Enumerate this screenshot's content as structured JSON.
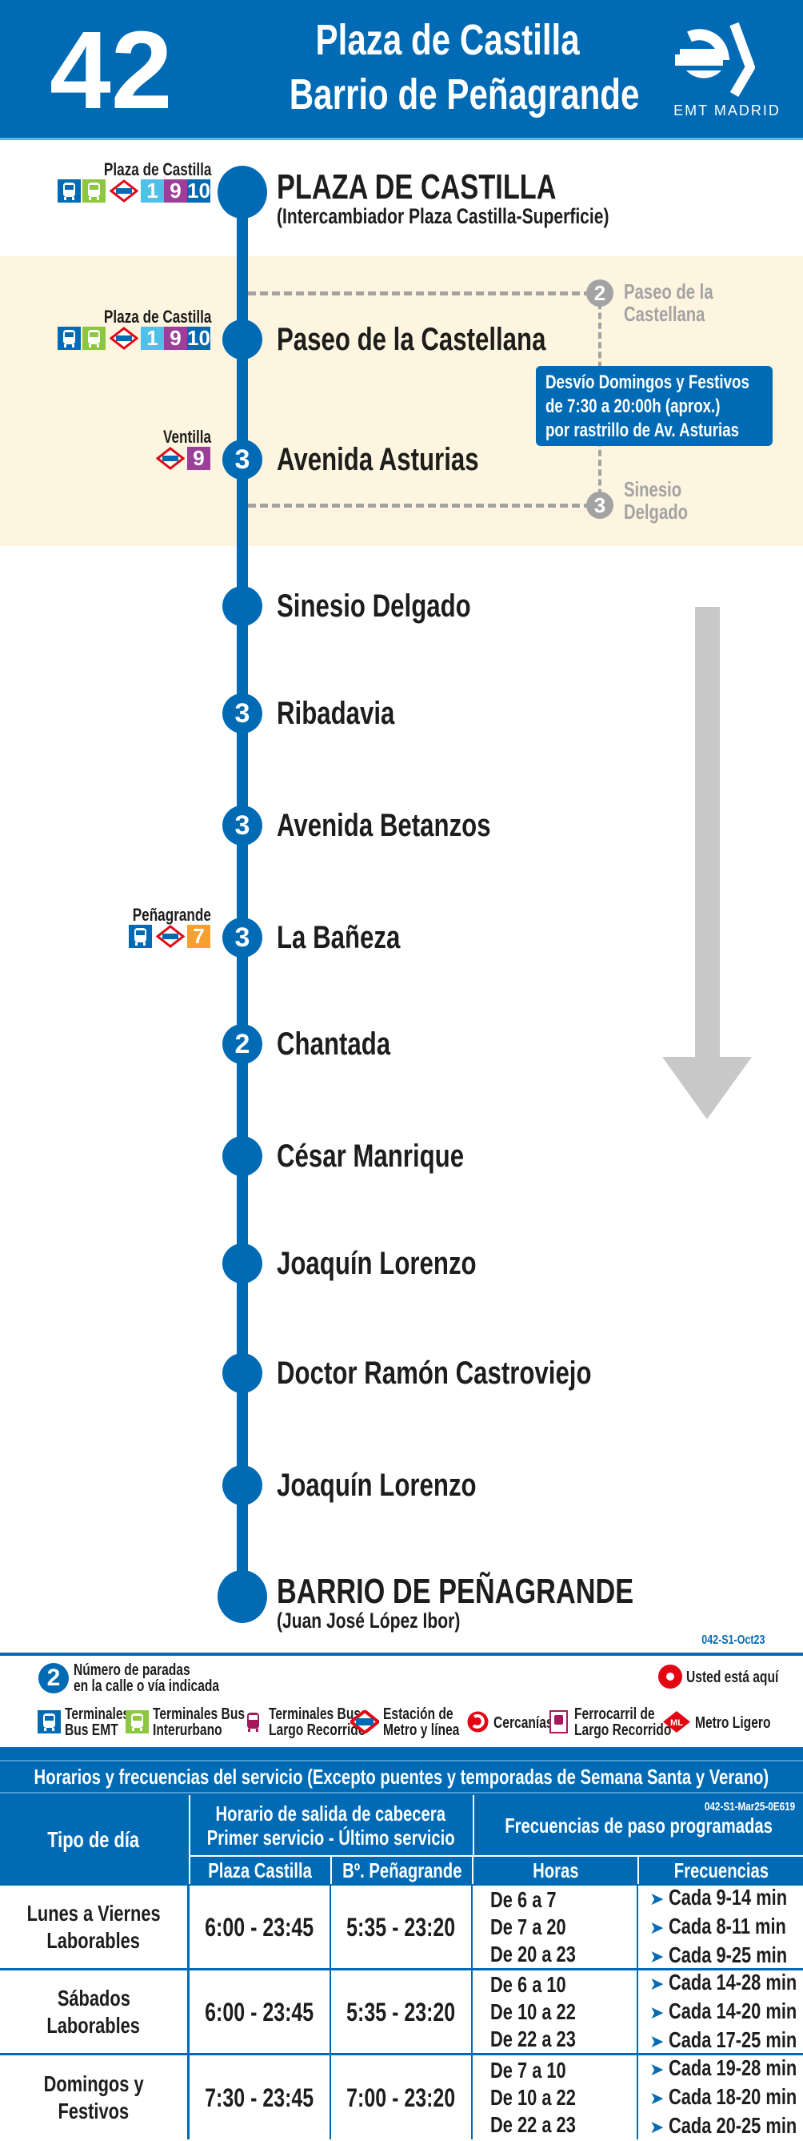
{
  "header": {
    "route": "42",
    "origin": "Plaza de Castilla",
    "destination": "Barrio de Peñagrande",
    "brand": "EMT MADRID"
  },
  "colors": {
    "emt_blue": "#006bb4",
    "detour_band": "#fdf5df",
    "metro_line_1": "#4fc0e8",
    "metro_line_9": "#9b3f98",
    "metro_line_10": "#0069b4",
    "metro_line_7": "#f5a031",
    "interurban_green": "#8dc63f",
    "grey_branch": "#a3a3a3",
    "red_here": "#e30613"
  },
  "stops": [
    {
      "name": "PLAZA DE CASTILLA",
      "sub": "(Intercambiador Plaza Castilla-Superficie)",
      "terminal": true,
      "connection_label": "Plaza de Castilla",
      "connections": [
        "bus-emt",
        "bus-interurbano",
        "metro"
      ],
      "lines": [
        "1",
        "9",
        "10"
      ]
    },
    {
      "name": "Paseo de la Castellana",
      "connection_label": "Plaza de Castilla",
      "connections": [
        "bus-emt",
        "bus-interurbano",
        "metro"
      ],
      "lines": [
        "1",
        "9",
        "10"
      ]
    },
    {
      "name": "Avenida Asturias",
      "count": "3",
      "connection_label": "Ventilla",
      "connections": [
        "metro"
      ],
      "lines": [
        "9"
      ]
    },
    {
      "name": "Sinesio Delgado"
    },
    {
      "name": "Ribadavia",
      "count": "3"
    },
    {
      "name": "Avenida Betanzos",
      "count": "3"
    },
    {
      "name": "La Bañeza",
      "count": "3",
      "connection_label": "Peñagrande",
      "connections": [
        "bus-emt",
        "metro"
      ],
      "lines": [
        "7"
      ]
    },
    {
      "name": "Chantada",
      "count": "2"
    },
    {
      "name": "César Manrique"
    },
    {
      "name": "Joaquín Lorenzo"
    },
    {
      "name": "Doctor Ramón Castroviejo"
    },
    {
      "name": "Joaquín Lorenzo"
    },
    {
      "name": "BARRIO DE PEÑAGRANDE",
      "sub": "(Juan José López Ibor)",
      "terminal": true
    }
  ],
  "detour": {
    "branch_stops": [
      {
        "count": "2",
        "line1": "Paseo de la",
        "line2": "Castellana"
      },
      {
        "count": "3",
        "line1": "Sinesio",
        "line2": "Delgado"
      }
    ],
    "note_lines": [
      "Desvío Domingos y Festivos",
      "de 7:30 a 20:00h (aprox.)",
      "por rastrillo de Av. Asturias"
    ]
  },
  "direction_arrow": "arrow-down-icon",
  "code_top": "042-S1-Oct23",
  "legend": {
    "stops_count": {
      "num": "2",
      "line1": "Número de paradas",
      "line2": "en la calle o vía indicada"
    },
    "here": "Usted está aquí",
    "items": [
      {
        "icon": "bus-emt-icon",
        "line1": "Terminales",
        "line2": "Bus EMT"
      },
      {
        "icon": "bus-interurbano-icon",
        "line1": "Terminales Bus",
        "line2": "Interurbano"
      },
      {
        "icon": "bus-largo-recorrido-icon",
        "line1": "Terminales Bus",
        "line2": "Largo Recorrido"
      },
      {
        "icon": "metro-icon",
        "line1": "Estación de",
        "line2": "Metro y línea"
      },
      {
        "icon": "cercanias-icon",
        "line1": "Cercanías",
        "line2": ""
      },
      {
        "icon": "ferrocarril-icon",
        "line1": "Ferrocarril de",
        "line2": "Largo Recorrido"
      },
      {
        "icon": "metro-ligero-icon",
        "line1": "Metro Ligero",
        "line2": ""
      }
    ]
  },
  "schedule": {
    "title": "Horarios y frecuencias del servicio (Excepto puentes y temporadas de Semana Santa y Verano)",
    "code": "042-S1-Mar25-0E619",
    "col_day": "Tipo de día",
    "col_departure": [
      "Horario de salida de cabecera",
      "Primer servicio - Último servicio"
    ],
    "col_freq": "Frecuencias de paso programadas",
    "sub_origin": "Plaza Castilla",
    "sub_dest": "Bº. Peñagrande",
    "sub_hours": "Horas",
    "sub_freq": "Frecuencias",
    "rows": [
      {
        "day": [
          "Lunes a Viernes",
          "Laborables"
        ],
        "origin": "6:00 - 23:45",
        "dest": "5:35 - 23:20",
        "hours": [
          "De 6 a 7",
          "De 7 a 20",
          "De 20 a 23"
        ],
        "freqs": [
          "Cada 9-14 min",
          "Cada 8-11 min",
          "Cada 9-25 min"
        ]
      },
      {
        "day": [
          "Sábados",
          "Laborables"
        ],
        "origin": "6:00 - 23:45",
        "dest": "5:35 - 23:20",
        "hours": [
          "De 6 a 10",
          "De 10 a 22",
          "De 22 a 23"
        ],
        "freqs": [
          "Cada 14-28 min",
          "Cada 14-20 min",
          "Cada 17-25 min"
        ]
      },
      {
        "day": [
          "Domingos y",
          "Festivos"
        ],
        "origin": "7:30 - 23:45",
        "dest": "7:00 - 23:20",
        "hours": [
          "De 7 a 10",
          "De 10 a 22",
          "De 22 a 23"
        ],
        "freqs": [
          "Cada 19-28 min",
          "Cada 18-20 min",
          "Cada 20-25 min"
        ]
      }
    ]
  }
}
